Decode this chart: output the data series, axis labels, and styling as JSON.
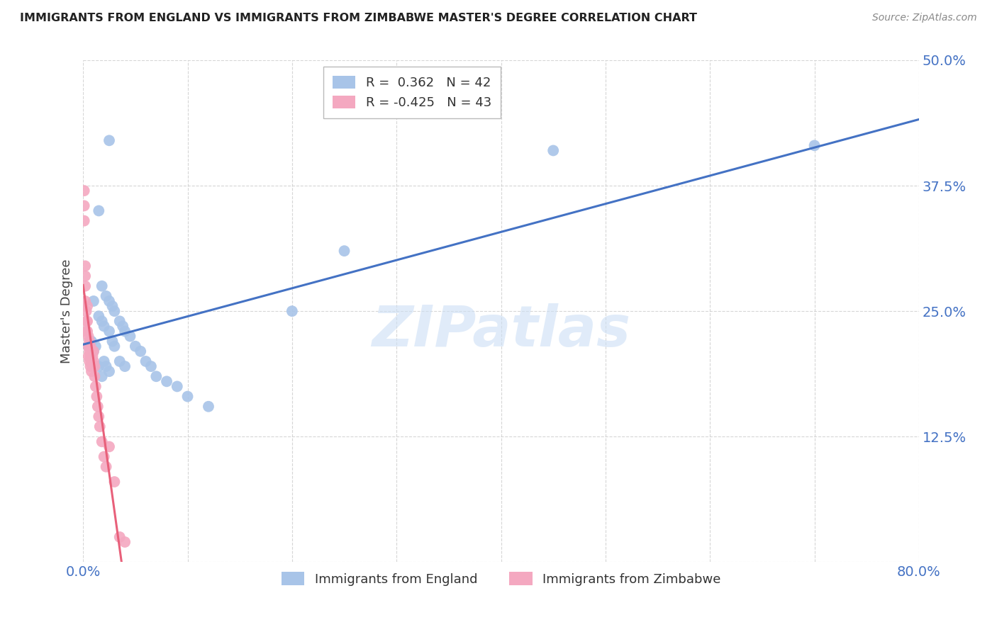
{
  "title": "IMMIGRANTS FROM ENGLAND VS IMMIGRANTS FROM ZIMBABWE MASTER'S DEGREE CORRELATION CHART",
  "source": "Source: ZipAtlas.com",
  "ylabel": "Master's Degree",
  "xlim": [
    0.0,
    0.8
  ],
  "ylim": [
    0.0,
    0.5
  ],
  "xticks": [
    0.0,
    0.1,
    0.2,
    0.3,
    0.4,
    0.5,
    0.6,
    0.7,
    0.8
  ],
  "yticks": [
    0.0,
    0.125,
    0.25,
    0.375,
    0.5
  ],
  "england_R": 0.362,
  "england_N": 42,
  "zimbabwe_R": -0.425,
  "zimbabwe_N": 43,
  "england_color": "#a8c4e8",
  "zimbabwe_color": "#f4a8c0",
  "england_line_color": "#4472c4",
  "zimbabwe_line_color": "#e8607a",
  "watermark_text": "ZIPatlas",
  "england_x": [
    0.005,
    0.008,
    0.01,
    0.012,
    0.015,
    0.018,
    0.02,
    0.022,
    0.025,
    0.01,
    0.015,
    0.018,
    0.02,
    0.025,
    0.028,
    0.03,
    0.035,
    0.04,
    0.018,
    0.022,
    0.025,
    0.028,
    0.03,
    0.035,
    0.038,
    0.04,
    0.045,
    0.05,
    0.055,
    0.06,
    0.065,
    0.07,
    0.08,
    0.09,
    0.1,
    0.12,
    0.2,
    0.25,
    0.45,
    0.7,
    0.015,
    0.025
  ],
  "england_y": [
    0.215,
    0.22,
    0.21,
    0.215,
    0.195,
    0.185,
    0.2,
    0.195,
    0.19,
    0.26,
    0.245,
    0.24,
    0.235,
    0.23,
    0.22,
    0.215,
    0.2,
    0.195,
    0.275,
    0.265,
    0.26,
    0.255,
    0.25,
    0.24,
    0.235,
    0.23,
    0.225,
    0.215,
    0.21,
    0.2,
    0.195,
    0.185,
    0.18,
    0.175,
    0.165,
    0.155,
    0.25,
    0.31,
    0.41,
    0.415,
    0.35,
    0.42
  ],
  "zimbabwe_x": [
    0.001,
    0.001,
    0.001,
    0.002,
    0.002,
    0.002,
    0.002,
    0.003,
    0.003,
    0.003,
    0.004,
    0.004,
    0.004,
    0.005,
    0.005,
    0.005,
    0.006,
    0.006,
    0.006,
    0.007,
    0.007,
    0.007,
    0.008,
    0.008,
    0.008,
    0.009,
    0.009,
    0.01,
    0.01,
    0.011,
    0.011,
    0.012,
    0.013,
    0.014,
    0.015,
    0.016,
    0.018,
    0.02,
    0.022,
    0.025,
    0.03,
    0.035,
    0.04
  ],
  "zimbabwe_y": [
    0.37,
    0.355,
    0.34,
    0.295,
    0.285,
    0.275,
    0.26,
    0.25,
    0.24,
    0.23,
    0.255,
    0.24,
    0.23,
    0.225,
    0.215,
    0.205,
    0.22,
    0.21,
    0.2,
    0.215,
    0.205,
    0.195,
    0.21,
    0.2,
    0.19,
    0.205,
    0.195,
    0.21,
    0.2,
    0.195,
    0.185,
    0.175,
    0.165,
    0.155,
    0.145,
    0.135,
    0.12,
    0.105,
    0.095,
    0.115,
    0.08,
    0.025,
    0.02
  ],
  "background_color": "#ffffff",
  "grid_color": "#cccccc"
}
